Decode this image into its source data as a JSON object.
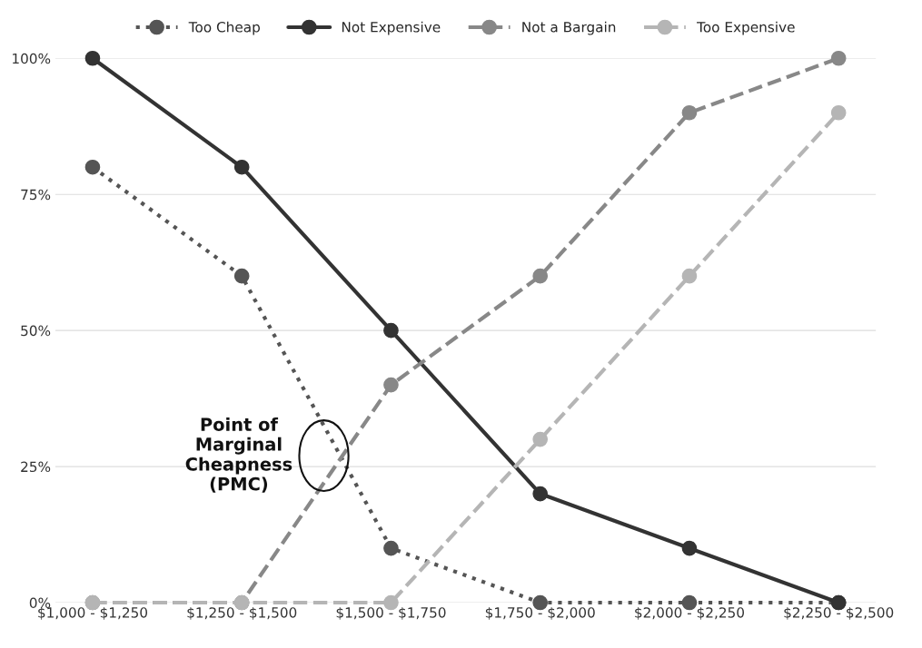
{
  "chart_data": {
    "type": "line",
    "categories": [
      "$1,000 - $1,250",
      "$1,250 - $1,500",
      "$1,500 - $1,750",
      "$1,750 - $2,000",
      "$2,000 - $2,250",
      "$2,250 - $2,500"
    ],
    "series": [
      {
        "name": "Too Cheap",
        "color": "#555555",
        "line_style": "dotted",
        "values": [
          80,
          60,
          10,
          0,
          0,
          0
        ]
      },
      {
        "name": "Not Expensive",
        "color": "#333333",
        "line_style": "solid",
        "values": [
          100,
          80,
          50,
          20,
          10,
          0
        ]
      },
      {
        "name": "Not a Bargain",
        "color": "#888888",
        "line_style": "dashed",
        "values": [
          0,
          0,
          40,
          60,
          90,
          100
        ]
      },
      {
        "name": "Too Expensive",
        "color": "#b5b5b5",
        "line_style": "dashed",
        "values": [
          0,
          0,
          0,
          30,
          60,
          90
        ]
      }
    ],
    "ylim": [
      0,
      100
    ],
    "yticks": [
      {
        "value": 0,
        "label": "0%"
      },
      {
        "value": 25,
        "label": "25%"
      },
      {
        "value": 50,
        "label": "50%"
      },
      {
        "value": 75,
        "label": "75%"
      },
      {
        "value": 100,
        "label": "100%"
      }
    ],
    "grid": "y",
    "legend": "top",
    "marker": "circle",
    "annotations": [
      "Point of\nMarginal\nCheapness\n(PMC)"
    ]
  }
}
